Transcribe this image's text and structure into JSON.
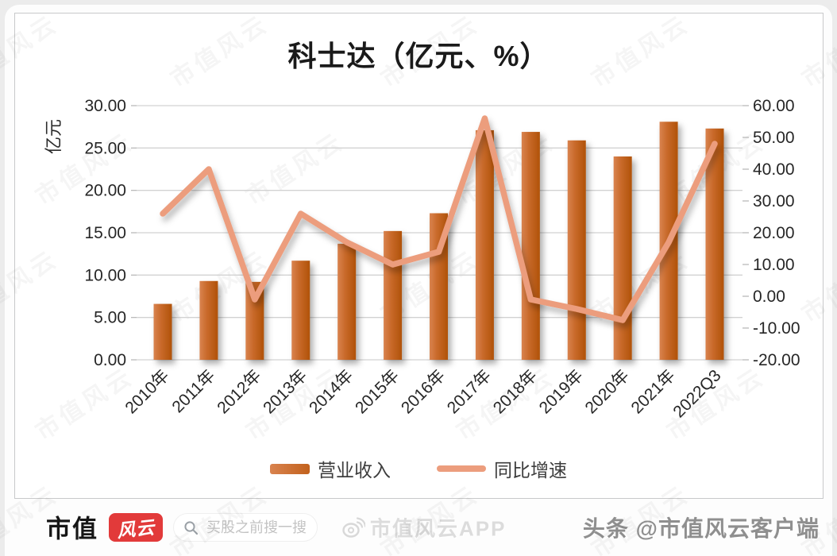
{
  "chart_data": {
    "type": "combo-bar-line",
    "title": "科士达（亿元、%）",
    "categories": [
      "2010年",
      "2011年",
      "2012年",
      "2013年",
      "2014年",
      "2015年",
      "2016年",
      "2017年",
      "2018年",
      "2019年",
      "2020年",
      "2021年",
      "2022Q3"
    ],
    "series": [
      {
        "name": "营业收入",
        "type": "bar",
        "axis": "left",
        "unit": "亿元",
        "values": [
          6.6,
          9.3,
          9.2,
          11.7,
          13.7,
          15.2,
          17.3,
          27.1,
          26.9,
          25.9,
          24.0,
          28.1,
          27.3
        ]
      },
      {
        "name": "同比增速",
        "type": "line",
        "axis": "right",
        "unit": "%",
        "values": [
          26,
          40,
          -1,
          26,
          17,
          10,
          14,
          56,
          -1,
          -4,
          -7.5,
          17,
          48
        ]
      }
    ],
    "left_axis": {
      "label": "亿元",
      "min": 0,
      "max": 30,
      "step": 5,
      "ticks": [
        "30.00",
        "25.00",
        "20.00",
        "15.00",
        "10.00",
        "5.00",
        "0.00"
      ]
    },
    "right_axis": {
      "min": -20,
      "max": 60,
      "step": 10,
      "ticks": [
        "60.00",
        "50.00",
        "40.00",
        "30.00",
        "20.00",
        "10.00",
        "0.00",
        "-10.00",
        "-20.00"
      ]
    },
    "legend": {
      "position": "bottom",
      "items": [
        "营业收入",
        "同比增速"
      ]
    },
    "grid": true,
    "colors": {
      "bar": "#C2611C",
      "bar_light": "#D9834F",
      "bar_dark": "#B05208",
      "line": "#EC9D7D",
      "gridline": "#D2D2D2",
      "tick_text": "#262626"
    }
  },
  "watermark": {
    "text": "市值风云"
  },
  "footer": {
    "logo": {
      "text": "市值",
      "badge": "风云",
      "badge_color": "#E23A3A"
    },
    "search": {
      "placeholder": "买股之前搜一搜"
    },
    "app_watermark": "市值风云APP",
    "byline": "头条 @市值风云客户端"
  }
}
